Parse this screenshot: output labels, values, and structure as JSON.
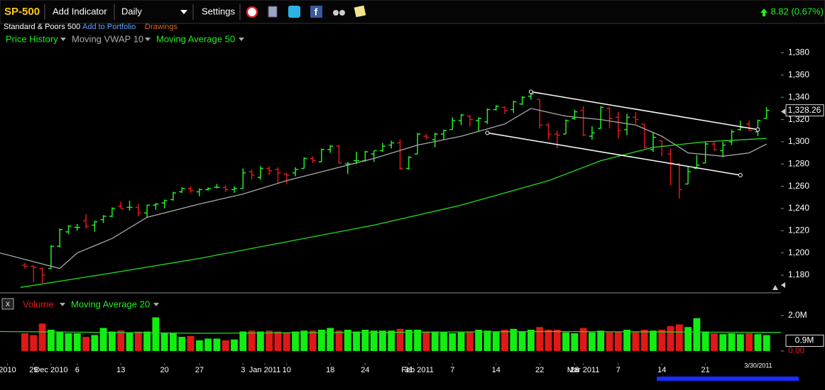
{
  "toolbar": {
    "symbol": "SP-500",
    "add_indicator": "Add Indicator",
    "interval": "Daily",
    "settings": "Settings",
    "change": "8.82 (0.67%)"
  },
  "info": {
    "name": "Standard & Poors 500",
    "add_to_portfolio": "Add to Portfolio",
    "drawings": "Drawings"
  },
  "chart_data": [
    {
      "type": "ohlc",
      "series": [
        {
          "name": "Price History",
          "up_color": "#22ee22",
          "down_color": "#e01818",
          "open": [
            1189,
            1188,
            1186,
            1186,
            1206,
            1219,
            1223,
            1229,
            1225,
            1230,
            1233,
            1242,
            1241,
            1241,
            1236,
            1243,
            1245,
            1248,
            1255,
            1258,
            1255,
            1257,
            1259,
            1259,
            1257,
            1258,
            1273,
            1268,
            1276,
            1275,
            1271,
            1272,
            1276,
            1285,
            1282,
            1293,
            1296,
            1280,
            1283,
            1283,
            1289,
            1292,
            1297,
            1299,
            1276,
            1289,
            1305,
            1302,
            1307,
            1311,
            1319,
            1323,
            1319,
            1318,
            1329,
            1331,
            1329,
            1334,
            1341,
            1338,
            1315,
            1307,
            1307,
            1321,
            1328,
            1305,
            1312,
            1330,
            1322,
            1311,
            1322,
            1316,
            1293,
            1301,
            1289,
            1280,
            1262,
            1276,
            1281,
            1298,
            1292,
            1300,
            1311,
            1316,
            1309,
            1321
          ],
          "high": [
            1191,
            1189,
            1187,
            1207,
            1222,
            1225,
            1226,
            1235,
            1229,
            1234,
            1241,
            1246,
            1247,
            1244,
            1243,
            1245,
            1248,
            1255,
            1259,
            1260,
            1258,
            1259,
            1262,
            1261,
            1260,
            1276,
            1275,
            1278,
            1278,
            1277,
            1272,
            1277,
            1286,
            1287,
            1294,
            1297,
            1297,
            1282,
            1291,
            1292,
            1292,
            1299,
            1301,
            1302,
            1287,
            1308,
            1307,
            1308,
            1311,
            1322,
            1325,
            1324,
            1322,
            1330,
            1333,
            1332,
            1337,
            1341,
            1344,
            1338,
            1317,
            1310,
            1320,
            1329,
            1332,
            1314,
            1332,
            1331,
            1327,
            1325,
            1327,
            1316,
            1308,
            1301,
            1294,
            1281,
            1278,
            1288,
            1300,
            1300,
            1300,
            1311,
            1319,
            1319,
            1320,
            1331
          ],
          "low": [
            1186,
            1174,
            1173,
            1186,
            1205,
            1217,
            1220,
            1222,
            1219,
            1227,
            1232,
            1240,
            1238,
            1233,
            1232,
            1239,
            1240,
            1247,
            1254,
            1254,
            1251,
            1256,
            1258,
            1255,
            1254,
            1258,
            1266,
            1266,
            1270,
            1263,
            1262,
            1269,
            1276,
            1281,
            1282,
            1290,
            1280,
            1271,
            1280,
            1282,
            1282,
            1291,
            1294,
            1275,
            1275,
            1289,
            1302,
            1295,
            1302,
            1311,
            1315,
            1314,
            1309,
            1316,
            1328,
            1325,
            1326,
            1333,
            1338,
            1312,
            1302,
            1294,
            1307,
            1320,
            1305,
            1302,
            1312,
            1312,
            1303,
            1306,
            1316,
            1294,
            1291,
            1287,
            1261,
            1249,
            1262,
            1276,
            1281,
            1292,
            1286,
            1297,
            1310,
            1310,
            1305,
            1321
          ],
          "close": [
            1188,
            1187,
            1180,
            1206,
            1221,
            1224,
            1223,
            1224,
            1228,
            1233,
            1240,
            1240,
            1241,
            1236,
            1243,
            1244,
            1247,
            1254,
            1258,
            1256,
            1257,
            1258,
            1259,
            1257,
            1258,
            1272,
            1270,
            1276,
            1274,
            1272,
            1270,
            1275,
            1285,
            1283,
            1293,
            1296,
            1281,
            1280,
            1283,
            1291,
            1292,
            1296,
            1299,
            1276,
            1286,
            1307,
            1304,
            1307,
            1310,
            1319,
            1324,
            1320,
            1321,
            1329,
            1332,
            1328,
            1336,
            1340,
            1343,
            1315,
            1307,
            1306,
            1319,
            1327,
            1306,
            1308,
            1331,
            1321,
            1310,
            1322,
            1320,
            1295,
            1304,
            1296,
            1281,
            1257,
            1273,
            1279,
            1298,
            1293,
            1297,
            1309,
            1313,
            1310,
            1319,
            1328.26
          ]
        }
      ],
      "lines": [
        {
          "name": "Moving VWAP 10",
          "color": "#a8a8a8",
          "x": [
            -2.85,
            4,
            6,
            10,
            14,
            20,
            25,
            30,
            35,
            40,
            45,
            50,
            55,
            58,
            62,
            66,
            70,
            73,
            76,
            80,
            83,
            85
          ],
          "values": [
            1200,
            1186,
            1200,
            1213,
            1232,
            1244,
            1253,
            1265,
            1275,
            1285,
            1297,
            1305,
            1316,
            1330,
            1323,
            1320,
            1315,
            1305,
            1290,
            1287,
            1290,
            1298
          ]
        },
        {
          "name": "Moving Average 50",
          "color": "#22dd22",
          "x": [
            -0.5,
            10,
            20,
            30,
            40,
            50,
            60,
            66,
            72,
            78,
            85
          ],
          "values": [
            1169,
            1182,
            1195,
            1210,
            1225,
            1243,
            1265,
            1283,
            1295,
            1300,
            1303
          ]
        }
      ],
      "trendlines": [
        {
          "x": [
            58,
            84
          ],
          "values": [
            1345,
            1311
          ]
        },
        {
          "x": [
            53,
            82
          ],
          "values": [
            1308,
            1270
          ]
        }
      ],
      "current_label": "1,328.26",
      "date_label": "3/30/2011",
      "xlim": [
        -2.85,
        86.65
      ],
      "xticks": [
        {
          "value": -2,
          "label": "2010"
        },
        {
          "value": 1,
          "label": "29"
        },
        {
          "value": 3,
          "label": "Dec 2010"
        },
        {
          "value": 6,
          "label": "6"
        },
        {
          "value": 11,
          "label": "13"
        },
        {
          "value": 16,
          "label": "20"
        },
        {
          "value": 20,
          "label": "27"
        },
        {
          "value": 25,
          "label": "3"
        },
        {
          "value": 27.5,
          "label": "Jan 2011"
        },
        {
          "value": 30,
          "label": "10"
        },
        {
          "value": 35,
          "label": "18"
        },
        {
          "value": 39,
          "label": "24"
        },
        {
          "value": 44,
          "label": "31"
        },
        {
          "value": 45,
          "label": "Feb 2011"
        },
        {
          "value": 49,
          "label": "7"
        },
        {
          "value": 54,
          "label": "14"
        },
        {
          "value": 59,
          "label": "22"
        },
        {
          "value": 63,
          "label": "28"
        },
        {
          "value": 64,
          "label": "Mar 2011"
        },
        {
          "value": 68,
          "label": "7"
        },
        {
          "value": 73,
          "label": "14"
        },
        {
          "value": 78,
          "label": "21"
        }
      ],
      "ylim": [
        1166,
        1388
      ],
      "yticks": [
        {
          "value": 1180,
          "label": "1,180"
        },
        {
          "value": 1200,
          "label": "1,200"
        },
        {
          "value": 1220,
          "label": "1,220"
        },
        {
          "value": 1240,
          "label": "1,240"
        },
        {
          "value": 1260,
          "label": "1,260"
        },
        {
          "value": 1280,
          "label": "1,280"
        },
        {
          "value": 1300,
          "label": "1,300"
        },
        {
          "value": 1320,
          "label": "1,320"
        },
        {
          "value": 1340,
          "label": "1,340"
        },
        {
          "value": 1360,
          "label": "1,360"
        },
        {
          "value": 1380,
          "label": "1,380"
        }
      ]
    },
    {
      "type": "bar",
      "series": [
        {
          "name": "Volume",
          "color": "#e01818",
          "values": [
            1.0,
            0.9,
            1.55,
            1.2,
            1.1,
            1.0,
            1.0,
            0.8,
            0.9,
            1.3,
            1.1,
            1.15,
            1.05,
            1.1,
            1.1,
            1.9,
            1.0,
            1.0,
            0.8,
            0.85,
            0.6,
            0.7,
            0.7,
            0.6,
            0.65,
            1.1,
            1.15,
            1.1,
            1.15,
            1.1,
            1.05,
            1.1,
            1.15,
            1.15,
            1.2,
            1.3,
            1.15,
            1.2,
            1.1,
            1.2,
            1.15,
            1.15,
            1.15,
            1.25,
            1.2,
            1.2,
            1.1,
            1.1,
            1.05,
            1.0,
            1.05,
            1.1,
            1.2,
            1.15,
            1.1,
            1.2,
            1.25,
            1.1,
            1.2,
            1.35,
            1.2,
            1.2,
            1.05,
            1.0,
            1.3,
            1.05,
            1.15,
            1.05,
            1.1,
            1.2,
            1.05,
            1.2,
            1.15,
            1.2,
            1.4,
            1.5,
            1.35,
            1.85,
            1.1,
            1.0,
            0.95,
            1.0,
            0.95,
            1.0,
            0.95,
            0.9
          ]
        }
      ],
      "lines": [
        {
          "name": "Moving Average 20",
          "color": "#22dd22",
          "x": [
            -2.85,
            20,
            40,
            60,
            86.65
          ],
          "values": [
            1.1,
            1.0,
            1.05,
            1.1,
            1.05
          ]
        }
      ],
      "current_label": "0.9M",
      "ylim": [
        -0.2,
        2.2
      ],
      "yticks": [
        {
          "value": 2,
          "label": "2.0M"
        },
        {
          "value": 0,
          "label": "0.00"
        }
      ]
    }
  ]
}
